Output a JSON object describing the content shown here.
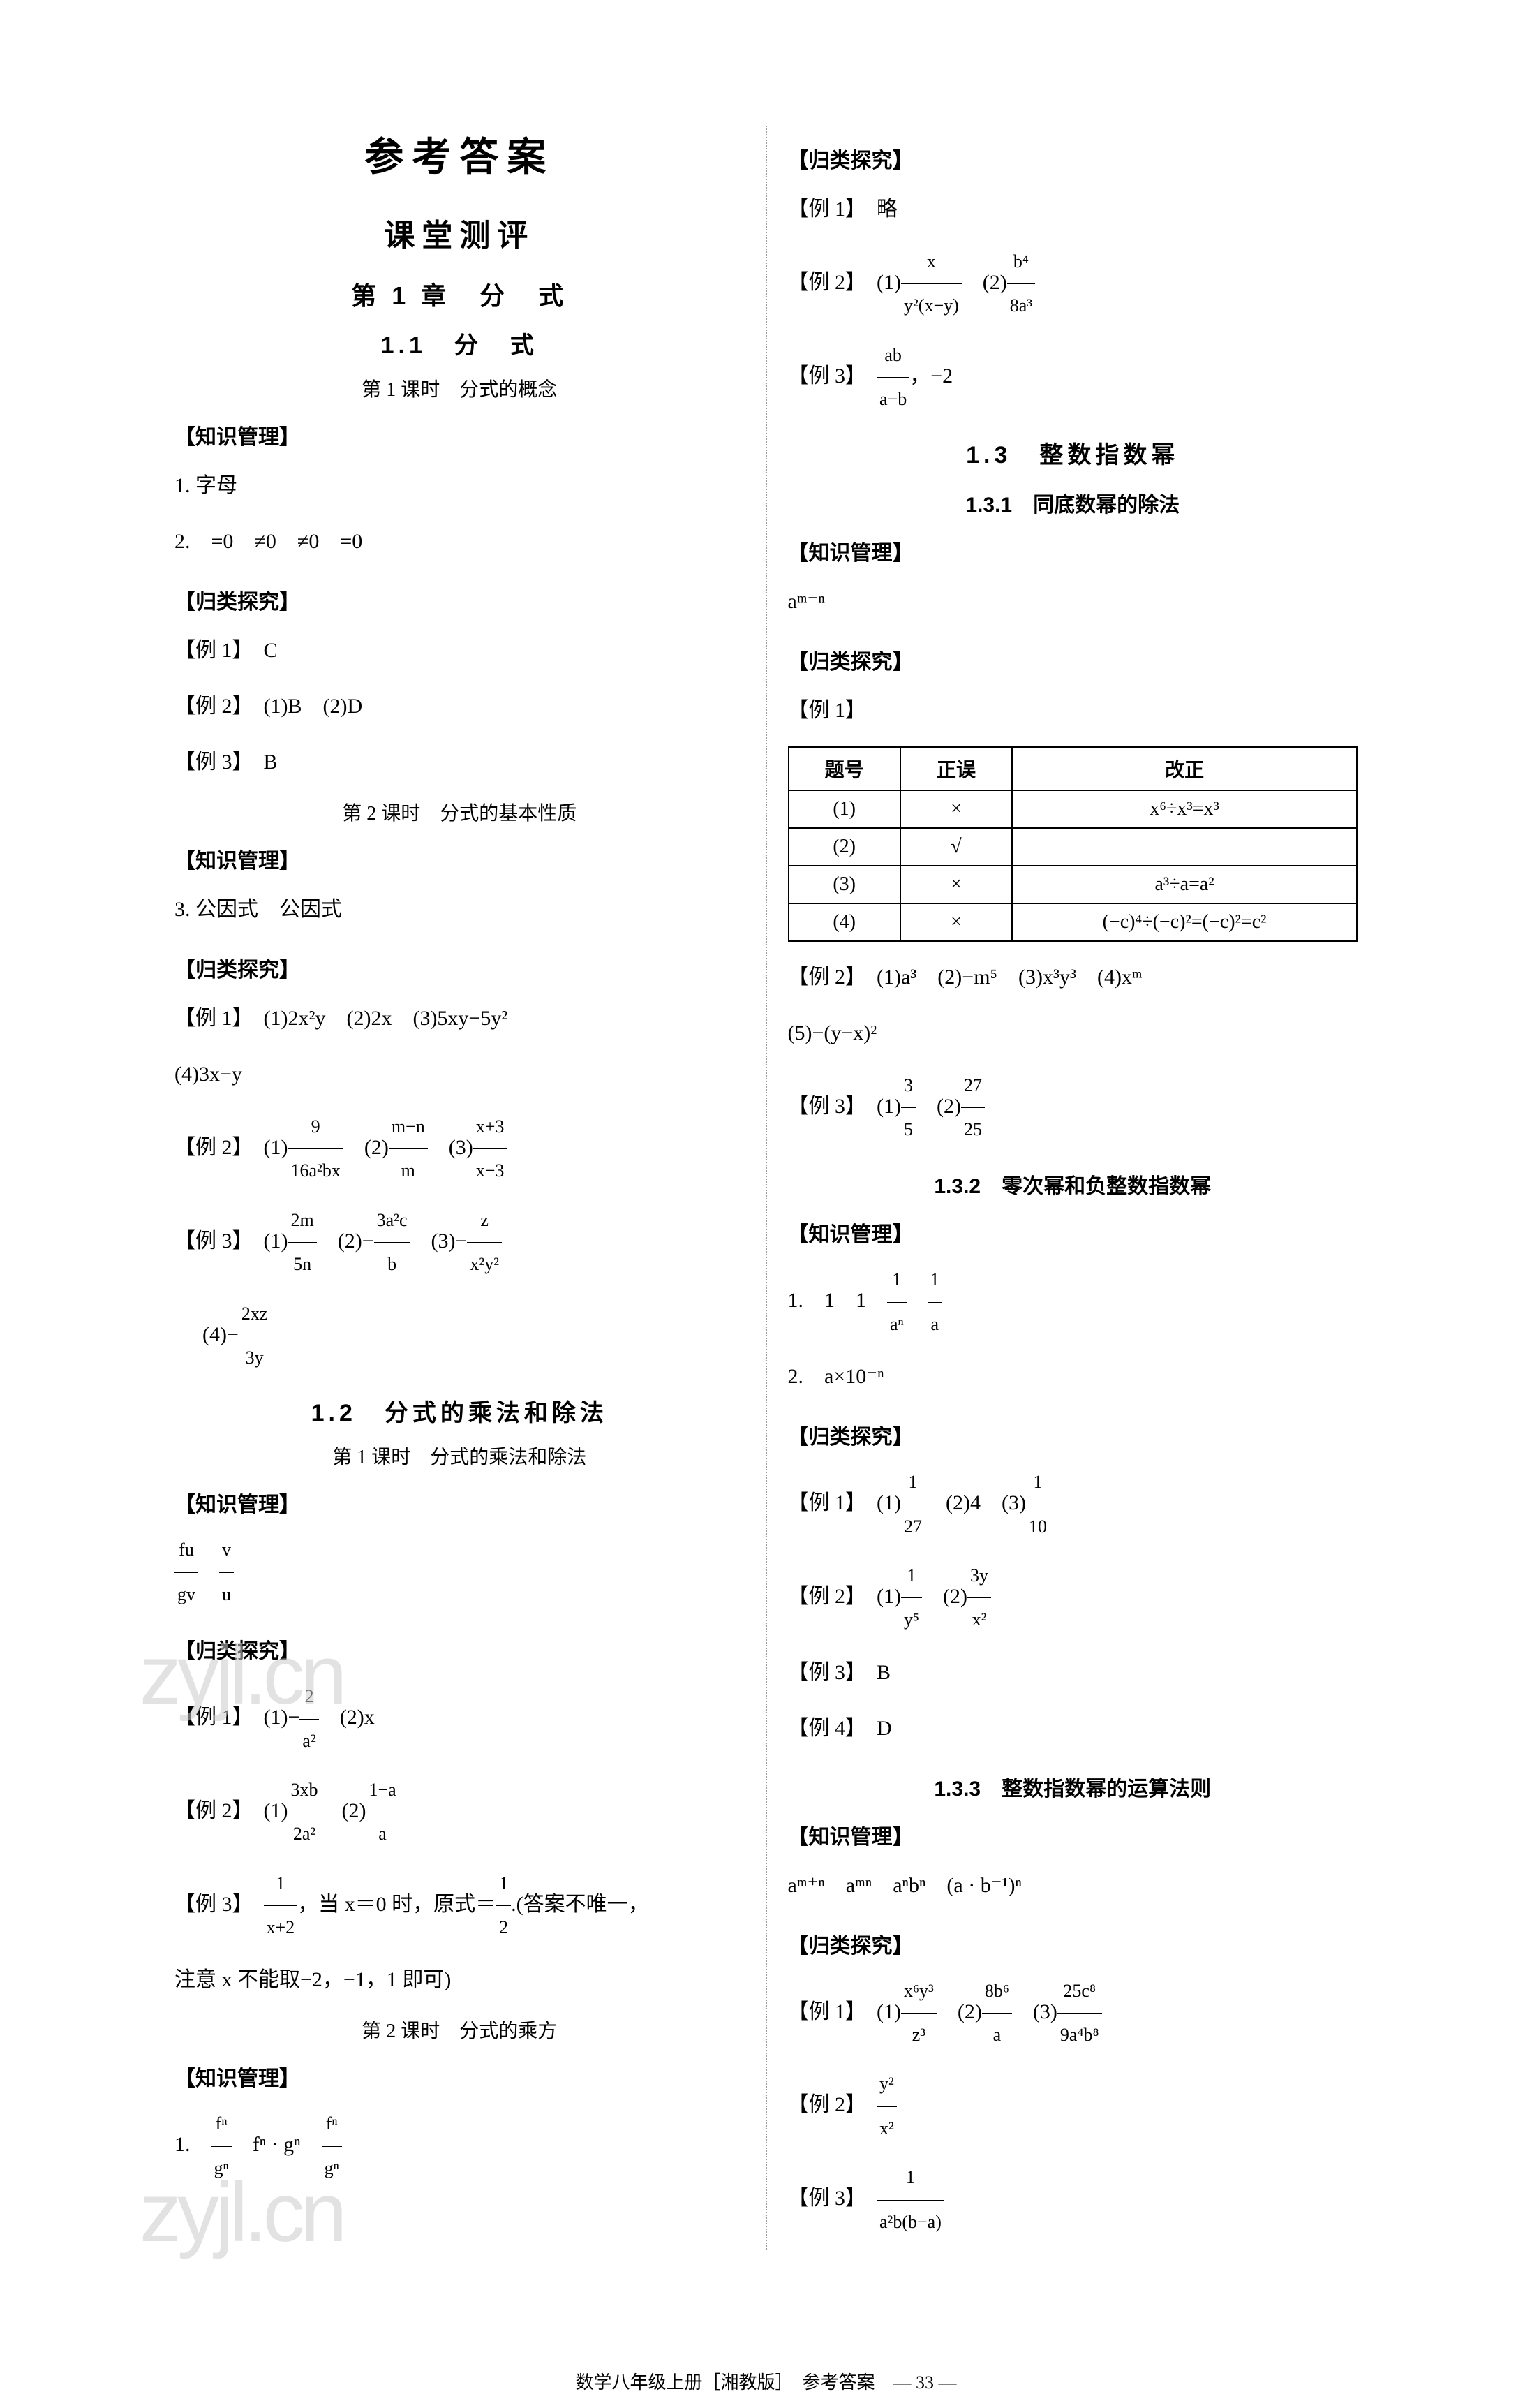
{
  "colors": {
    "background": "#ffffff",
    "text": "#000000",
    "divider": "#999999",
    "watermark": "#cccccc",
    "table_border": "#000000"
  },
  "typography": {
    "title_main_size": 56,
    "title_sub_size": 44,
    "title_chapter_size": 36,
    "body_size": 30,
    "font_family_heading": "SimHei",
    "font_family_body": "SimSun"
  },
  "watermark_text": "zyjl.cn",
  "left": {
    "title_main": "参考答案",
    "title_sub": "课堂测评",
    "chapter": "第 1 章　分　式",
    "section_1_1": "1.1　分　式",
    "lesson_1_1_1": "第 1 课时　分式的概念",
    "h_zsgl": "【知识管理】",
    "zsgl_1_1_1_1": "1. 字母",
    "zsgl_1_1_1_2": "2.　=0　≠0　≠0　=0",
    "h_gltj": "【归类探究】",
    "ex1": "【例 1】　C",
    "ex2": "【例 2】　(1)B　(2)D",
    "ex3": "【例 3】　B",
    "lesson_1_1_2": "第 2 课时　分式的基本性质",
    "zsgl_1_1_2_3": "3. 公因式　公因式",
    "ex1_2_1": "【例 1】　(1)2x²y　(2)2x　(3)5xy−5y²",
    "ex1_2_1b": "(4)3x−y",
    "ex1_2_2_label": "【例 2】",
    "ex1_2_2_1_num": "9",
    "ex1_2_2_1_den": "16a²bx",
    "ex1_2_2_2_num": "m−n",
    "ex1_2_2_2_den": "m",
    "ex1_2_2_3_num": "x+3",
    "ex1_2_2_3_den": "x−3",
    "ex1_2_3_label": "【例 3】",
    "ex1_2_3_1_num": "2m",
    "ex1_2_3_1_den": "5n",
    "ex1_2_3_2_num": "3a²c",
    "ex1_2_3_2_den": "b",
    "ex1_2_3_3_num": "z",
    "ex1_2_3_3_den": "x²y²",
    "ex1_2_3_4_num": "2xz",
    "ex1_2_3_4_den": "3y",
    "section_1_2": "1.2　分式的乘法和除法",
    "lesson_1_2_1": "第 1 课时　分式的乘法和除法",
    "zsgl_1_2_1_num1": "fu",
    "zsgl_1_2_1_den1": "gv",
    "zsgl_1_2_1_num2": "v",
    "zsgl_1_2_1_den2": "u",
    "ex_1_2_1_1_label": "【例 1】",
    "ex_1_2_1_1_1_num": "2",
    "ex_1_2_1_1_1_den": "a²",
    "ex_1_2_1_1_2": "(2)x",
    "ex_1_2_1_2_label": "【例 2】",
    "ex_1_2_1_2_1_num": "3xb",
    "ex_1_2_1_2_1_den": "2a²",
    "ex_1_2_1_2_2_num": "1−a",
    "ex_1_2_1_2_2_den": "a",
    "ex_1_2_1_3_label": "【例 3】",
    "ex_1_2_1_3_num": "1",
    "ex_1_2_1_3_den": "x+2",
    "ex_1_2_1_3_mid": "，当 x＝0 时，原式＝",
    "ex_1_2_1_3_num2": "1",
    "ex_1_2_1_3_den2": "2",
    "ex_1_2_1_3_end": ".(答案不唯一，",
    "ex_1_2_1_3_line2": "注意 x 不能取−2，−1，1 即可)",
    "lesson_1_2_2": "第 2 课时　分式的乘方",
    "zsgl_1_2_2_label": "1.",
    "zsgl_1_2_2_1_num": "fⁿ",
    "zsgl_1_2_2_1_den": "gⁿ",
    "zsgl_1_2_2_mid": "fⁿ · gⁿ",
    "zsgl_1_2_2_2_num": "fⁿ",
    "zsgl_1_2_2_2_den": "gⁿ"
  },
  "right": {
    "h_gltj": "【归类探究】",
    "ex1": "【例 1】　略",
    "ex2_label": "【例 2】",
    "ex2_1_num": "x",
    "ex2_1_den": "y²(x−y)",
    "ex2_2_num": "b⁴",
    "ex2_2_den": "8a³",
    "ex3_label": "【例 3】",
    "ex3_num": "ab",
    "ex3_den": "a−b",
    "ex3_end": "，−2",
    "section_1_3": "1.3　整数指数幂",
    "sub_1_3_1": "1.3.1　同底数幂的除法",
    "h_zsgl": "【知识管理】",
    "zsgl_1_3_1": "aᵐ⁻ⁿ",
    "ex1_1_3_1": "【例 1】",
    "table": {
      "headers": [
        "题号",
        "正误",
        "改正"
      ],
      "rows": [
        [
          "(1)",
          "×",
          "x⁶÷x³=x³"
        ],
        [
          "(2)",
          "√",
          ""
        ],
        [
          "(3)",
          "×",
          "a³÷a=a²"
        ],
        [
          "(4)",
          "×",
          "(−c)⁴÷(−c)²=(−c)²=c²"
        ]
      ],
      "border_color": "#000000",
      "font_size": 28
    },
    "ex2_1_3_1": "【例 2】　(1)a³　(2)−m⁵　(3)x³y³　(4)xᵐ",
    "ex2_1_3_1b": "(5)−(y−x)²",
    "ex3_1_3_1_label": "【例 3】",
    "ex3_1_3_1_1_num": "3",
    "ex3_1_3_1_1_den": "5",
    "ex3_1_3_1_2_num": "27",
    "ex3_1_3_1_2_den": "25",
    "sub_1_3_2": "1.3.2　零次幂和负整数指数幂",
    "zsgl_1_3_2_1a": "1.　1　1",
    "zsgl_1_3_2_1_num": "1",
    "zsgl_1_3_2_1_den": "aⁿ",
    "zsgl_1_3_2_1_num2": "1",
    "zsgl_1_3_2_1_den2": "a",
    "zsgl_1_3_2_2": "2.　a×10⁻ⁿ",
    "ex1_1_3_2_label": "【例 1】",
    "ex1_1_3_2_1_num": "1",
    "ex1_1_3_2_1_den": "27",
    "ex1_1_3_2_2": "(2)4",
    "ex1_1_3_2_3_num": "1",
    "ex1_1_3_2_3_den": "10",
    "ex2_1_3_2_label": "【例 2】",
    "ex2_1_3_2_1_num": "1",
    "ex2_1_3_2_1_den": "y⁵",
    "ex2_1_3_2_2_num": "3y",
    "ex2_1_3_2_2_den": "x²",
    "ex3_1_3_2": "【例 3】　B",
    "ex4_1_3_2": "【例 4】　D",
    "sub_1_3_3": "1.3.3　整数指数幂的运算法则",
    "zsgl_1_3_3": "aᵐ⁺ⁿ　aᵐⁿ　aⁿbⁿ　(a · b⁻¹)ⁿ",
    "ex1_1_3_3_label": "【例 1】",
    "ex1_1_3_3_1_num": "x⁶y³",
    "ex1_1_3_3_1_den": "z³",
    "ex1_1_3_3_2_num": "8b⁶",
    "ex1_1_3_3_2_den": "a",
    "ex1_1_3_3_3_num": "25c⁸",
    "ex1_1_3_3_3_den": "9a⁴b⁸",
    "ex2_1_3_3_label": "【例 2】",
    "ex2_1_3_3_num": "y²",
    "ex2_1_3_3_den": "x²",
    "ex3_1_3_3_label": "【例 3】",
    "ex3_1_3_3_num": "1",
    "ex3_1_3_3_den": "a²b(b−a)"
  },
  "footer": "数学八年级上册［湘教版］　参考答案　— 33 —"
}
